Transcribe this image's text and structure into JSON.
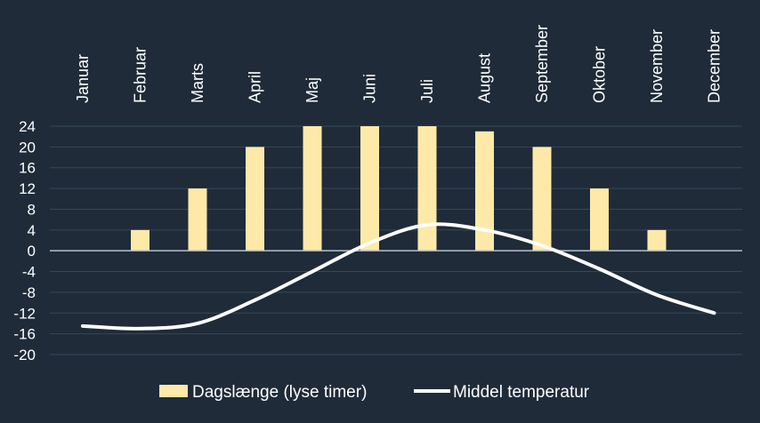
{
  "chart_data": {
    "type": "bar",
    "categories": [
      "Januar",
      "Februar",
      "Marts",
      "April",
      "Maj",
      "Juni",
      "Juli",
      "August",
      "September",
      "Oktober",
      "November",
      "December"
    ],
    "series": [
      {
        "name": "Dagslænge (lyse timer)",
        "type": "bar",
        "color": "#ffe9a8",
        "values": [
          0,
          4,
          12,
          20,
          24,
          24,
          24,
          23,
          20,
          12,
          4,
          0
        ]
      },
      {
        "name": "Middel temperatur",
        "type": "line",
        "color": "#ffffff",
        "values": [
          -14.5,
          -15,
          -14,
          -9.5,
          -4,
          1.5,
          5,
          4,
          1,
          -3.5,
          -8.5,
          -12
        ]
      }
    ],
    "y_ticks": [
      24,
      20,
      16,
      12,
      8,
      4,
      0,
      -4,
      -8,
      -12,
      -16,
      -20
    ],
    "ylim": [
      -20,
      24
    ],
    "grid": true,
    "legend": "bottom",
    "title": "",
    "xlabel": "",
    "ylabel": ""
  }
}
